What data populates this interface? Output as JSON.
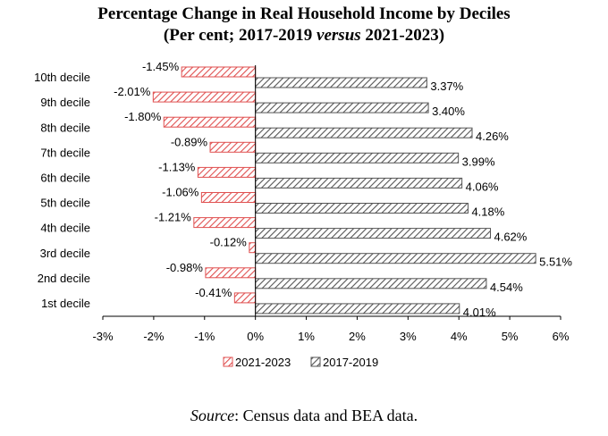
{
  "title": {
    "line1": "Percentage Change in Real Household Income by Deciles",
    "line2_a": "(Per cent; 2017-2019 ",
    "line2_b": "versus",
    "line2_c": " 2021-2023)"
  },
  "source": {
    "label": "Source",
    "text": ": Census data and BEA data."
  },
  "colors": {
    "series_2021_2023": "#e05050",
    "series_2017_2019": "#555555"
  },
  "chart_data": {
    "type": "bar",
    "orientation": "horizontal",
    "categories": [
      "10th decile",
      "9th decile",
      "8th decile",
      "7th decile",
      "6th decile",
      "5th decile",
      "4th decile",
      "3rd decile",
      "2nd decile",
      "1st decile"
    ],
    "series": [
      {
        "name": "2021-2023",
        "values": [
          -1.45,
          -2.01,
          -1.8,
          -0.89,
          -1.13,
          -1.06,
          -1.21,
          -0.12,
          -0.98,
          -0.41
        ],
        "labels": [
          "-1.45%",
          "-2.01%",
          "-1.80%",
          "-0.89%",
          "-1.13%",
          "-1.06%",
          "-1.21%",
          "-0.12%",
          "-0.98%",
          "-0.41%"
        ],
        "pattern": "diagonal-hatch",
        "color": "#e05050"
      },
      {
        "name": "2017-2019",
        "values": [
          3.37,
          3.4,
          4.26,
          3.99,
          4.06,
          4.18,
          4.62,
          5.51,
          4.54,
          4.01
        ],
        "labels": [
          "3.37%",
          "3.40%",
          "4.26%",
          "3.99%",
          "4.06%",
          "4.18%",
          "4.62%",
          "5.51%",
          "4.54%",
          "4.01%"
        ],
        "pattern": "diagonal-hatch",
        "color": "#555555"
      }
    ],
    "xlim": [
      -3,
      6
    ],
    "xticks": [
      -3,
      -2,
      -1,
      0,
      1,
      2,
      3,
      4,
      5,
      6
    ],
    "xtick_labels": [
      "-3%",
      "-2%",
      "-1%",
      "0%",
      "1%",
      "2%",
      "3%",
      "4%",
      "5%",
      "6%"
    ],
    "legend": [
      "2021-2023",
      "2017-2019"
    ],
    "legend_position": "bottom",
    "grid": false
  }
}
